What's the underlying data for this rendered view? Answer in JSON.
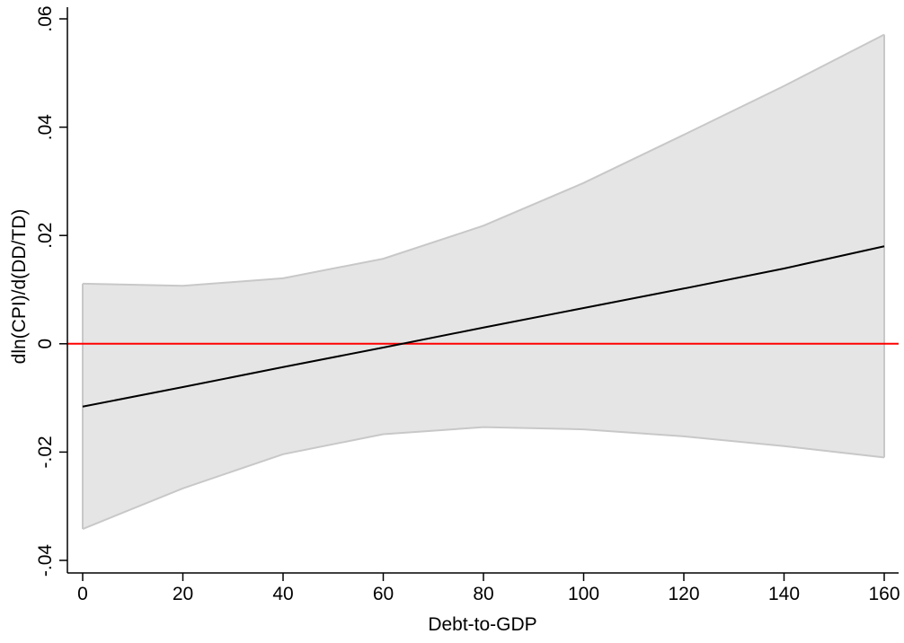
{
  "chart_data": {
    "type": "line",
    "title": "",
    "xlabel": "Debt-to-GDP",
    "ylabel": "dln(CPI)/d(DD/TD)",
    "xlim": [
      0,
      160
    ],
    "ylim": [
      -0.04,
      0.06
    ],
    "x_ticks": [
      0,
      20,
      40,
      60,
      80,
      100,
      120,
      140,
      160
    ],
    "x_tick_labels": [
      "0",
      "20",
      "40",
      "60",
      "80",
      "100",
      "120",
      "140",
      "160"
    ],
    "y_ticks": [
      -0.04,
      -0.02,
      0,
      0.02,
      0.04,
      0.06
    ],
    "y_tick_labels": [
      "-.04",
      "-.02",
      "0",
      ".02",
      ".04",
      ".06"
    ],
    "grid": false,
    "legend": "none",
    "x": [
      0,
      20,
      40,
      60,
      80,
      100,
      120,
      140,
      160
    ],
    "series": [
      {
        "values": [
          -0.0116,
          -0.008,
          -0.0043,
          -0.0007,
          0.003,
          0.0066,
          0.0102,
          0.0139,
          0.018
        ]
      }
    ],
    "confidence_band": {
      "upper": [
        0.0111,
        0.0107,
        0.0121,
        0.0157,
        0.0218,
        0.0297,
        0.0386,
        0.0476,
        0.0571
      ],
      "lower": [
        -0.0342,
        -0.0267,
        -0.0204,
        -0.0167,
        -0.0154,
        -0.0158,
        -0.0171,
        -0.0189,
        -0.021
      ]
    },
    "reference_line": {
      "y": 0
    },
    "colors": {
      "line": "#000000",
      "band_fill": "#e5e5e5",
      "band_edge": "#c8c8c8",
      "reference": "#ff0000"
    }
  }
}
